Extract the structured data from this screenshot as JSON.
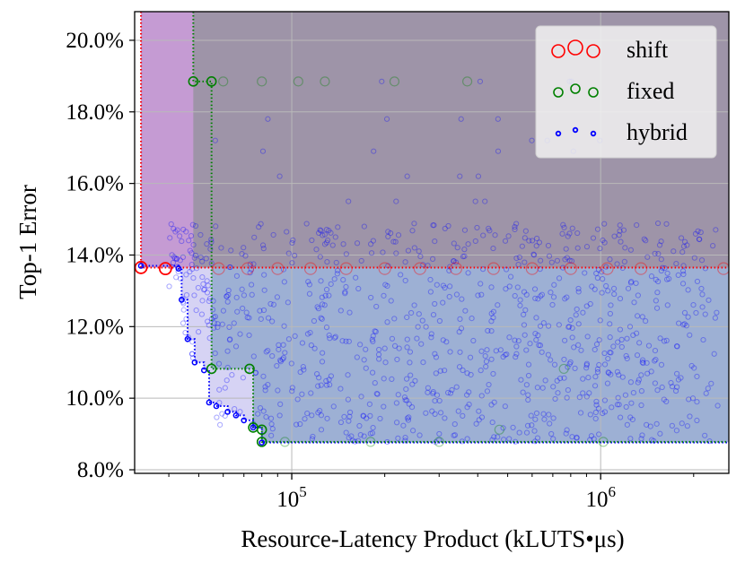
{
  "chart_data": {
    "type": "scatter",
    "title": "",
    "xlabel": "Resource-Latency Product (kLUTS•μs)",
    "ylabel": "Top-1 Error",
    "x_scale": "log",
    "xlim": [
      31000,
      2600000
    ],
    "ylim": [
      7.9,
      20.8
    ],
    "x_tick_labels": [
      {
        "value": 100000,
        "base": "10",
        "exp": "5"
      },
      {
        "value": 1000000,
        "base": "10",
        "exp": "6"
      }
    ],
    "y_ticks": [
      8.0,
      10.0,
      12.0,
      14.0,
      16.0,
      18.0,
      20.0
    ],
    "y_tick_labels": [
      "8.0%",
      "10.0%",
      "12.0%",
      "14.0%",
      "16.0%",
      "18.0%",
      "20.0%"
    ],
    "grid": true,
    "legend_placement": "top-right",
    "series": [
      {
        "name": "shift",
        "color": "#ff0000",
        "marker": "large open circle",
        "pareto_points": [
          [
            32500,
            13.65
          ],
          [
            39000,
            13.62
          ]
        ],
        "dominated_points": [
          [
            58000,
            13.62
          ],
          [
            72000,
            13.62
          ],
          [
            90000,
            13.62
          ],
          [
            115000,
            13.62
          ],
          [
            150000,
            13.62
          ],
          [
            200000,
            13.62
          ],
          [
            260000,
            13.62
          ],
          [
            340000,
            13.62
          ],
          [
            450000,
            13.62
          ],
          [
            600000,
            13.62
          ],
          [
            800000,
            13.62
          ],
          [
            1050000,
            13.62
          ],
          [
            1350000,
            13.62
          ],
          [
            2500000,
            13.62
          ]
        ]
      },
      {
        "name": "fixed",
        "color": "#008000",
        "marker": "medium open circle",
        "pareto_points": [
          [
            48000,
            18.85
          ],
          [
            55000,
            18.85
          ],
          [
            55000,
            10.82
          ],
          [
            73000,
            10.82
          ],
          [
            75000,
            9.18
          ],
          [
            80000,
            9.12
          ],
          [
            80000,
            8.78
          ]
        ],
        "dominated_points": [
          [
            60000,
            18.85
          ],
          [
            80000,
            18.85
          ],
          [
            105000,
            18.85
          ],
          [
            128000,
            18.85
          ],
          [
            215000,
            18.85
          ],
          [
            370000,
            18.85
          ],
          [
            470000,
            9.12
          ],
          [
            760000,
            10.82
          ],
          [
            1020000,
            8.78
          ],
          [
            95000,
            8.78
          ],
          [
            180000,
            8.78
          ],
          [
            300000,
            8.78
          ]
        ]
      },
      {
        "name": "hybrid",
        "color": "#0000ff",
        "marker": "small open circle",
        "pareto_points": [
          [
            32500,
            13.7
          ],
          [
            43000,
            13.62
          ],
          [
            44000,
            12.75
          ],
          [
            46000,
            11.65
          ],
          [
            48500,
            11.0
          ],
          [
            52000,
            10.78
          ],
          [
            54000,
            9.88
          ],
          [
            57000,
            9.78
          ],
          [
            62000,
            9.62
          ],
          [
            66000,
            9.52
          ],
          [
            70000,
            9.38
          ],
          [
            75000,
            9.18
          ],
          [
            80000,
            8.76
          ]
        ],
        "point_cloud": {
          "count": 950,
          "x_range": [
            40000,
            2400000
          ],
          "y_range": [
            8.76,
            14.9
          ],
          "outliers_y": [
            15.5,
            16.2,
            16.9,
            17.2,
            17.8,
            18.85
          ]
        }
      }
    ],
    "frontier_steps": {
      "shift": [
        [
          32500,
          13.65
        ],
        [
          32500,
          20.8
        ],
        [
          2600000,
          13.65
        ]
      ],
      "fixed": [
        [
          48000,
          18.85
        ],
        [
          55000,
          10.82
        ],
        [
          75000,
          9.18
        ],
        [
          80000,
          8.78
        ]
      ],
      "hybrid": [
        [
          32500,
          13.7
        ],
        [
          43000,
          13.62
        ],
        [
          44000,
          12.75
        ],
        [
          46000,
          11.65
        ],
        [
          48500,
          11.0
        ],
        [
          52000,
          10.78
        ],
        [
          54000,
          9.88
        ],
        [
          57000,
          9.78
        ],
        [
          62000,
          9.62
        ],
        [
          66000,
          9.52
        ],
        [
          70000,
          9.38
        ],
        [
          75000,
          9.18
        ],
        [
          80000,
          8.76
        ]
      ]
    },
    "colors": {
      "shift_fill": "#c59bd3",
      "fixed_fill": "#9e94a8",
      "hybrid_fill": "#9db0d4",
      "hybrid_light_fill": "#d6d3f4"
    }
  }
}
